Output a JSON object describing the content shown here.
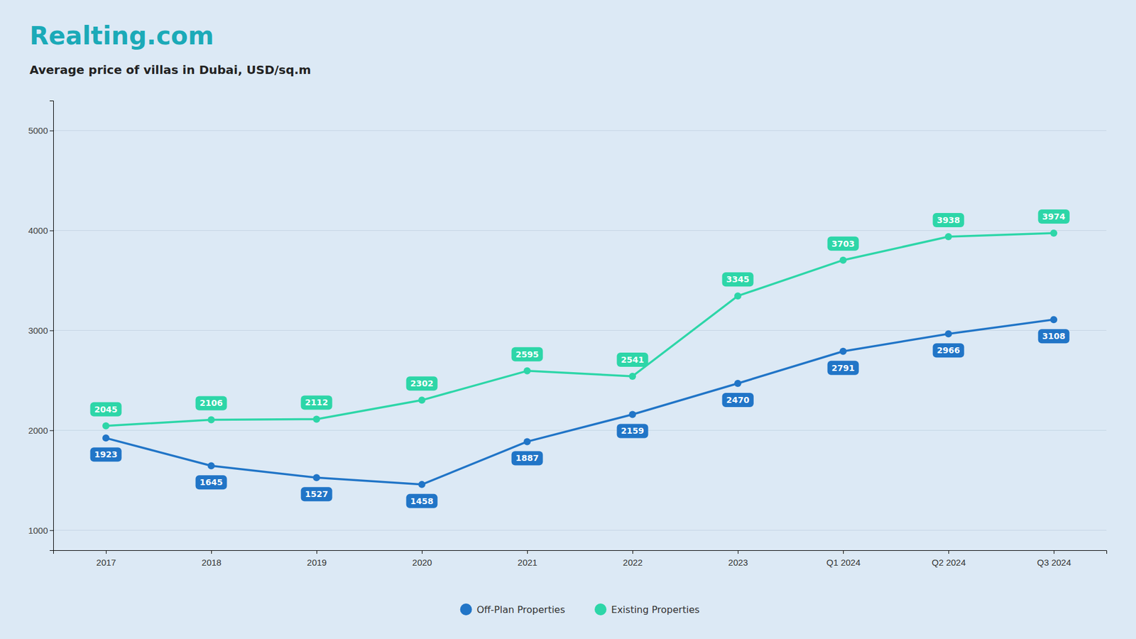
{
  "chart_data": {
    "type": "line",
    "title": "Realting.com",
    "subtitle": "Average price of villas in Dubai, USD/sq.m",
    "categories": [
      "2017",
      "2018",
      "2019",
      "2020",
      "2021",
      "2022",
      "2023",
      "Q1 2024",
      "Q2 2024",
      "Q3 2024"
    ],
    "series": [
      {
        "name": "Off-Plan Properties",
        "color": "#2175c7",
        "marker": "circle",
        "values": [
          1923,
          1645,
          1527,
          1458,
          1887,
          2159,
          2470,
          2791,
          2966,
          3108
        ]
      },
      {
        "name": "Existing Properties",
        "color": "#2dd6a8",
        "marker": "circle",
        "values": [
          2045,
          2106,
          2112,
          2302,
          2595,
          2541,
          3345,
          3703,
          3938,
          3974
        ]
      }
    ],
    "ylim": [
      800,
      5300
    ],
    "yticks": [
      1000,
      2000,
      3000,
      4000,
      5000
    ],
    "grid": true,
    "legend": "bottom",
    "data_labels": true
  }
}
